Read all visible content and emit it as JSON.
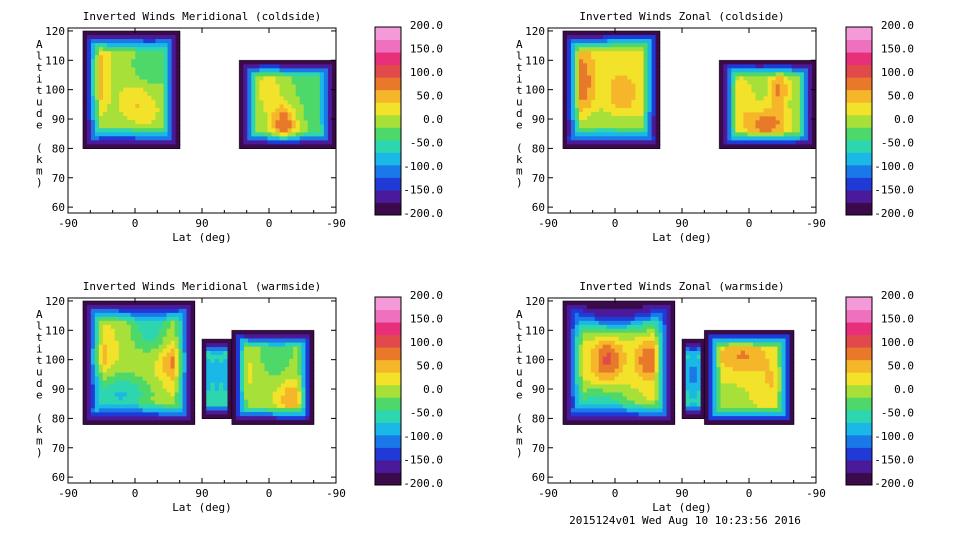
{
  "footer": "2015124v01 Wed Aug 10 10:23:56 2016",
  "colormap": [
    "#3b0a4a",
    "#4b1a9a",
    "#1f3ad6",
    "#1a78e8",
    "#1ab8e6",
    "#2ed6b0",
    "#4fd86a",
    "#a8e03a",
    "#f2e22a",
    "#f5b62a",
    "#e8782a",
    "#e04a4a",
    "#e8307a",
    "#f070c0",
    "#f59ad8"
  ],
  "colorbar": {
    "ticks": [
      "200.0",
      "150.0",
      "100.0",
      "50.0",
      "0.0",
      "-50.0",
      "-100.0",
      "-150.0",
      "-200.0"
    ],
    "range": [
      -200,
      200
    ]
  },
  "chart_data": [
    {
      "type": "heatmap",
      "title": "Inverted Winds Meridional (coldside)",
      "xlabel": "Lat (deg)",
      "ylabel": "Altitude (km)",
      "xticks": [
        "-90",
        "0",
        "90",
        "0",
        "-90"
      ],
      "yticks": [
        "60",
        "70",
        "80",
        "90",
        "100",
        "110",
        "120"
      ],
      "ylim": [
        58,
        121
      ],
      "x_segments": [
        [
          -90,
          90
        ],
        [
          90,
          -90
        ]
      ],
      "grid": false,
      "colorbar_range": [
        -200,
        200
      ],
      "regions": [
        {
          "lat_range": [
            -70,
            60
          ],
          "alt_range": [
            80,
            120
          ],
          "background": 10,
          "features": [
            {
              "lat": -55,
              "alt": 104,
              "value": 90,
              "spread": [
                10,
                7
              ]
            },
            {
              "lat": 20,
              "alt": 108,
              "value": -40,
              "spread": [
                20,
                6
              ]
            },
            {
              "lat": 5,
              "alt": 95,
              "value": 45,
              "spread": [
                14,
                6
              ]
            },
            {
              "lat": -20,
              "alt": 85,
              "value": -20,
              "spread": [
                30,
                4
              ]
            }
          ]
        },
        {
          "lat_range": [
            40,
            -90
          ],
          "alt_range": [
            80,
            110
          ],
          "background": -15,
          "features": [
            {
              "lat": -20,
              "alt": 88,
              "value": 90,
              "spread": [
                12,
                5
              ]
            },
            {
              "lat": 0,
              "alt": 100,
              "value": 30,
              "spread": [
                12,
                6
              ]
            },
            {
              "lat": -70,
              "alt": 98,
              "value": -40,
              "spread": [
                15,
                6
              ]
            }
          ]
        }
      ]
    },
    {
      "type": "heatmap",
      "title": "Inverted Winds Zonal (coldside)",
      "xlabel": "Lat (deg)",
      "ylabel": "Altitude (km)",
      "xticks": [
        "-90",
        "0",
        "90",
        "0",
        "-90"
      ],
      "yticks": [
        "60",
        "70",
        "80",
        "90",
        "100",
        "110",
        "120"
      ],
      "ylim": [
        58,
        121
      ],
      "x_segments": [
        [
          -90,
          90
        ],
        [
          90,
          -90
        ]
      ],
      "grid": false,
      "colorbar_range": [
        -200,
        200
      ],
      "regions": [
        {
          "lat_range": [
            -70,
            60
          ],
          "alt_range": [
            80,
            120
          ],
          "background": 20,
          "features": [
            {
              "lat": -45,
              "alt": 103,
              "value": 90,
              "spread": [
                12,
                8
              ]
            },
            {
              "lat": 20,
              "alt": 118,
              "value": 110,
              "spread": [
                25,
                3
              ]
            },
            {
              "lat": 10,
              "alt": 98,
              "value": 60,
              "spread": [
                15,
                6
              ]
            },
            {
              "lat": -10,
              "alt": 88,
              "value": -15,
              "spread": [
                40,
                4
              ]
            }
          ]
        },
        {
          "lat_range": [
            40,
            -90
          ],
          "alt_range": [
            80,
            110
          ],
          "background": -10,
          "features": [
            {
              "lat": -25,
              "alt": 88,
              "value": 80,
              "spread": [
                20,
                4
              ]
            },
            {
              "lat": -40,
              "alt": 100,
              "value": 70,
              "spread": [
                10,
                5
              ]
            },
            {
              "lat": 10,
              "alt": 96,
              "value": 30,
              "spread": [
                15,
                8
              ]
            }
          ]
        }
      ]
    },
    {
      "type": "heatmap",
      "title": "Inverted Winds Meridional (warmside)",
      "xlabel": "Lat (deg)",
      "ylabel": "Altitude (km)",
      "xticks": [
        "-90",
        "0",
        "90",
        "0",
        "-90"
      ],
      "yticks": [
        "60",
        "70",
        "80",
        "90",
        "100",
        "110",
        "120"
      ],
      "ylim": [
        58,
        121
      ],
      "x_segments": [
        [
          -90,
          90
        ],
        [
          90,
          -90
        ]
      ],
      "grid": false,
      "colorbar_range": [
        -200,
        200
      ],
      "regions": [
        {
          "lat_range": [
            -70,
            80
          ],
          "alt_range": [
            78,
            120
          ],
          "background": 15,
          "features": [
            {
              "lat": -50,
              "alt": 101,
              "value": 65,
              "spread": [
                12,
                5
              ]
            },
            {
              "lat": 55,
              "alt": 99,
              "value": 80,
              "spread": [
                15,
                5
              ]
            },
            {
              "lat": 20,
              "alt": 112,
              "value": -60,
              "spread": [
                20,
                7
              ]
            },
            {
              "lat": -20,
              "alt": 88,
              "value": -70,
              "spread": [
                30,
                5
              ]
            }
          ]
        },
        {
          "lat_range": [
            90,
            50
          ],
          "alt_range": [
            80,
            107
          ],
          "background": -20,
          "features": [
            {
              "lat": 70,
              "alt": 95,
              "value": -80,
              "spread": [
                10,
                8
              ]
            }
          ]
        },
        {
          "lat_range": [
            50,
            -60
          ],
          "alt_range": [
            78,
            110
          ],
          "background": 0,
          "features": [
            {
              "lat": 40,
              "alt": 96,
              "value": 50,
              "spread": [
                10,
                6
              ]
            },
            {
              "lat": -30,
              "alt": 87,
              "value": 60,
              "spread": [
                14,
                4
              ]
            },
            {
              "lat": -10,
              "alt": 103,
              "value": -40,
              "spread": [
                14,
                6
              ]
            }
          ]
        }
      ]
    },
    {
      "type": "heatmap",
      "title": "Inverted Winds Zonal (warmside)",
      "xlabel": "Lat (deg)",
      "ylabel": "Altitude (km)",
      "xticks": [
        "-90",
        "0",
        "90",
        "0",
        "-90"
      ],
      "yticks": [
        "60",
        "70",
        "80",
        "90",
        "100",
        "110",
        "120"
      ],
      "ylim": [
        58,
        121
      ],
      "x_segments": [
        [
          -90,
          90
        ],
        [
          90,
          -90
        ]
      ],
      "grid": false,
      "colorbar_range": [
        -200,
        200
      ],
      "regions": [
        {
          "lat_range": [
            -70,
            80
          ],
          "alt_range": [
            78,
            120
          ],
          "background": 20,
          "features": [
            {
              "lat": -10,
              "alt": 100,
              "value": 100,
              "spread": [
                14,
                5
              ]
            },
            {
              "lat": 45,
              "alt": 100,
              "value": 90,
              "spread": [
                12,
                5
              ]
            },
            {
              "lat": 0,
              "alt": 115,
              "value": -130,
              "spread": [
                45,
                4
              ]
            },
            {
              "lat": -20,
              "alt": 85,
              "value": -60,
              "spread": [
                30,
                4
              ]
            }
          ]
        },
        {
          "lat_range": [
            90,
            60
          ],
          "alt_range": [
            80,
            107
          ],
          "background": -30,
          "features": [
            {
              "lat": 75,
              "alt": 95,
              "value": -100,
              "spread": [
                8,
                8
              ]
            }
          ]
        },
        {
          "lat_range": [
            60,
            -60
          ],
          "alt_range": [
            78,
            110
          ],
          "background": 10,
          "features": [
            {
              "lat": 10,
              "alt": 101,
              "value": 70,
              "spread": [
                25,
                4
              ]
            },
            {
              "lat": -30,
              "alt": 92,
              "value": 40,
              "spread": [
                15,
                5
              ]
            }
          ]
        }
      ]
    }
  ]
}
